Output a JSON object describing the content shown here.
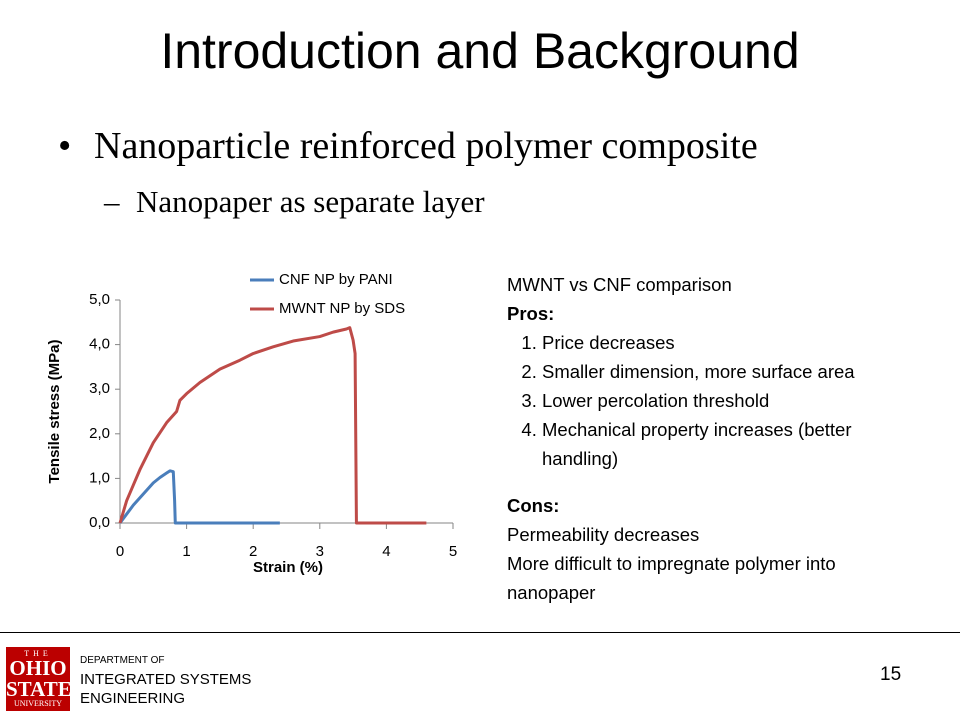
{
  "slide": {
    "title": "Introduction and Background",
    "bullets": [
      {
        "text": "Nanoparticle reinforced polymer composite",
        "sub": [
          "Nanopaper as separate layer"
        ]
      }
    ],
    "notes": {
      "heading": "MWNT vs CNF comparison",
      "pros_label": "Pros:",
      "pros": [
        "Price decreases",
        "Smaller dimension, more surface area",
        "Lower percolation threshold",
        "Mechanical property increases (better handling)"
      ],
      "cons_label": "Cons:",
      "cons": [
        "Permeability decreases",
        "More difficult to impregnate polymer into nanopaper"
      ]
    },
    "footer": {
      "logo": [
        "THE",
        "OHIO",
        "STATE",
        "UNIVERSITY"
      ],
      "department": [
        "DEPARTMENT OF",
        "INTEGRATED SYSTEMS",
        "ENGINEERING"
      ],
      "page": "15"
    }
  },
  "chart_data": {
    "type": "line",
    "x_label": "Strain (%)",
    "y_label": "Tensile stress (MPa)",
    "xlim": [
      0,
      5
    ],
    "xticks": [
      0,
      1,
      2,
      3,
      4,
      5
    ],
    "ylim": [
      0,
      5
    ],
    "yticks": [
      {
        "value": 0,
        "label": "0,0"
      },
      {
        "value": 1,
        "label": "1,0"
      },
      {
        "value": 2,
        "label": "2,0"
      },
      {
        "value": 3,
        "label": "3,0"
      },
      {
        "value": 4,
        "label": "4,0"
      },
      {
        "value": 5,
        "label": "5,0"
      }
    ],
    "series": [
      {
        "name": "CNF NP by PANI",
        "color": "#4a7ebb",
        "x": [
          0,
          0.1,
          0.2,
          0.35,
          0.5,
          0.6,
          0.7,
          0.75,
          0.8,
          0.82,
          0.83,
          1.5,
          2.4
        ],
        "values": [
          0,
          0.2,
          0.4,
          0.65,
          0.9,
          1.02,
          1.12,
          1.17,
          1.15,
          0.5,
          0,
          0,
          0
        ]
      },
      {
        "name": "MWNT NP by SDS",
        "color": "#be4b48",
        "x": [
          0,
          0.1,
          0.2,
          0.3,
          0.4,
          0.5,
          0.7,
          0.85,
          0.9,
          1.0,
          1.2,
          1.5,
          1.8,
          2.0,
          2.3,
          2.6,
          3.0,
          3.2,
          3.4,
          3.45,
          3.5,
          3.53,
          3.55,
          4.0,
          4.6
        ],
        "values": [
          0,
          0.5,
          0.85,
          1.2,
          1.5,
          1.8,
          2.25,
          2.5,
          2.75,
          2.9,
          3.15,
          3.45,
          3.65,
          3.8,
          3.95,
          4.08,
          4.18,
          4.28,
          4.35,
          4.38,
          4.1,
          3.8,
          0,
          0,
          0
        ]
      }
    ]
  }
}
